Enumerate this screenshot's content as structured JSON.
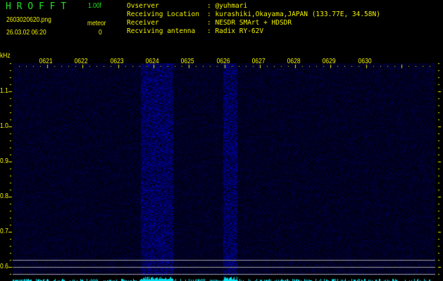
{
  "header": {
    "app_name": "H R O F F T",
    "version": "1.00f",
    "filename": "2603020620.png",
    "datetime": "26.03.02 06:20",
    "meteor_label": "meteor",
    "meteor_count": "0"
  },
  "info": {
    "observer_label": "Ovserver",
    "observer_value": ": @yuhmari",
    "location_label": "Receiving Location",
    "location_value": ": kurashiki,Okayama,JAPAN (133.77E, 34.58N)",
    "receiver_label": "Receiver",
    "receiver_value": ": NESDR SMArt + HDSDR",
    "antenna_label": "Recviving antenna",
    "antenna_value": ": Radix RY-62V"
  },
  "colors": {
    "text_header": "#22e022",
    "text_info": "#f0f000",
    "signal": "#2020ff",
    "histogram": "#00e0f0",
    "marker_lines": "#a0a0a0"
  },
  "chart_data": {
    "type": "heatmap",
    "ylabel": "kHz",
    "y_ticks": [
      "1.1",
      "1.0",
      "0.9",
      "0.8",
      "0.7",
      "0.6"
    ],
    "x_ticks": [
      "0621",
      "0622",
      "0623",
      "0624",
      "0625",
      "0626",
      "0627",
      "0628",
      "0629",
      "0630"
    ],
    "ylim": [
      0.56,
      1.18
    ],
    "reference_lines_khz": [
      0.62,
      0.6,
      0.58
    ],
    "bright_bands_minutes": [
      [
        "0623.5",
        "0624.4"
      ],
      [
        "0625.8",
        "0626.1"
      ]
    ]
  }
}
